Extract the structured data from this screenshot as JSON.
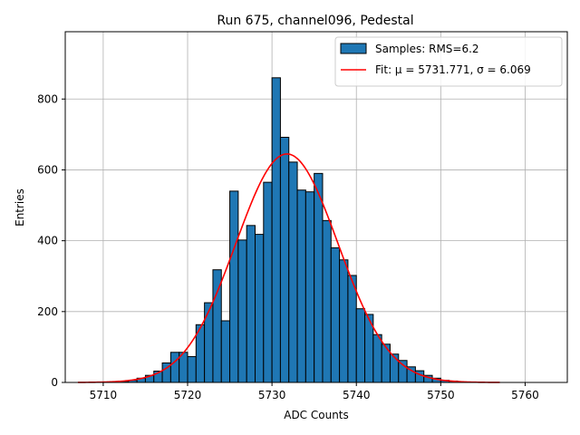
{
  "chart_data": {
    "type": "bar",
    "title": "Run 675, channel096, Pedestal",
    "xlabel": "ADC Counts",
    "ylabel": "Entries",
    "xlim": [
      5705.5,
      5765.0
    ],
    "ylim": [
      0,
      990
    ],
    "xticks": [
      5710,
      5720,
      5730,
      5740,
      5750,
      5760
    ],
    "yticks": [
      0,
      200,
      400,
      600,
      800
    ],
    "grid": true,
    "legend_position": "top-right",
    "histogram": {
      "name": "Samples: RMS=6.2",
      "color": "#1f77b4",
      "edge_color": "#000000",
      "bin_width": 1,
      "bin_starts": [
        5710,
        5711,
        5712,
        5713,
        5714,
        5715,
        5716,
        5717,
        5718,
        5719,
        5720,
        5721,
        5722,
        5723,
        5724,
        5725,
        5726,
        5727,
        5728,
        5729,
        5730,
        5731,
        5732,
        5733,
        5734,
        5735,
        5736,
        5737,
        5738,
        5739,
        5740,
        5741,
        5742,
        5743,
        5744,
        5745,
        5746,
        5747,
        5748,
        5749,
        5750,
        5751
      ],
      "values": [
        1,
        2,
        3,
        6,
        12,
        20,
        32,
        55,
        85,
        85,
        73,
        163,
        225,
        318,
        174,
        540,
        402,
        443,
        418,
        565,
        860,
        692,
        622,
        543,
        538,
        590,
        457,
        380,
        346,
        302,
        208,
        192,
        135,
        108,
        80,
        62,
        44,
        33,
        20,
        12,
        6,
        4
      ]
    },
    "fit": {
      "name": "Fit: μ = 5731.771, σ = 6.069",
      "color": "#ff0000",
      "mu": 5731.771,
      "sigma": 6.069,
      "amplitude": 645,
      "x_range": [
        5707,
        5757
      ]
    }
  }
}
